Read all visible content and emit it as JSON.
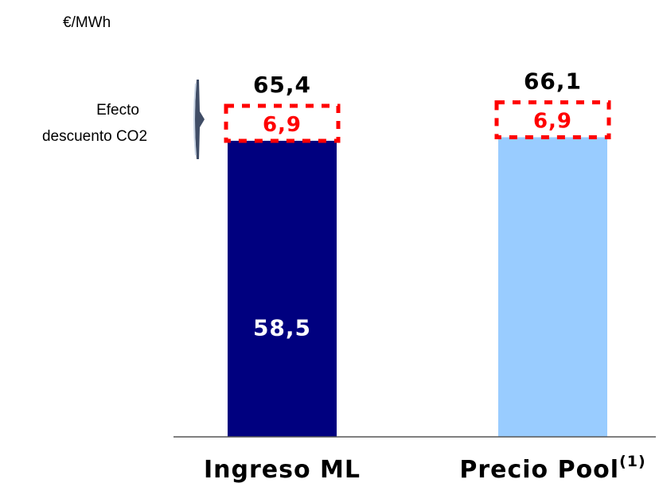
{
  "chart_data": {
    "type": "bar",
    "unit_label": "€/MWh",
    "categories": [
      "Ingreso ML",
      "Precio Pool"
    ],
    "category_superscripts": [
      "",
      "(1)"
    ],
    "series": [
      {
        "values": [
          58.5,
          59.2
        ],
        "colors": [
          "#00007f",
          "#99ccff"
        ]
      },
      {
        "values": [
          6.9,
          6.9
        ],
        "style": "dashed-red-outline"
      }
    ],
    "base_labels": [
      "58,5",
      ""
    ],
    "co2_labels": [
      "6,9",
      "6,9"
    ],
    "totals": [
      65.4,
      66.1
    ],
    "total_labels": [
      "65,4",
      "66,1"
    ],
    "annotation": {
      "lines": [
        "Efecto",
        "descuento CO2"
      ]
    },
    "colors": {
      "bar_dark": "#00007f",
      "bar_light": "#99ccff",
      "co2": "#ff0000",
      "axis": "#555555"
    }
  }
}
